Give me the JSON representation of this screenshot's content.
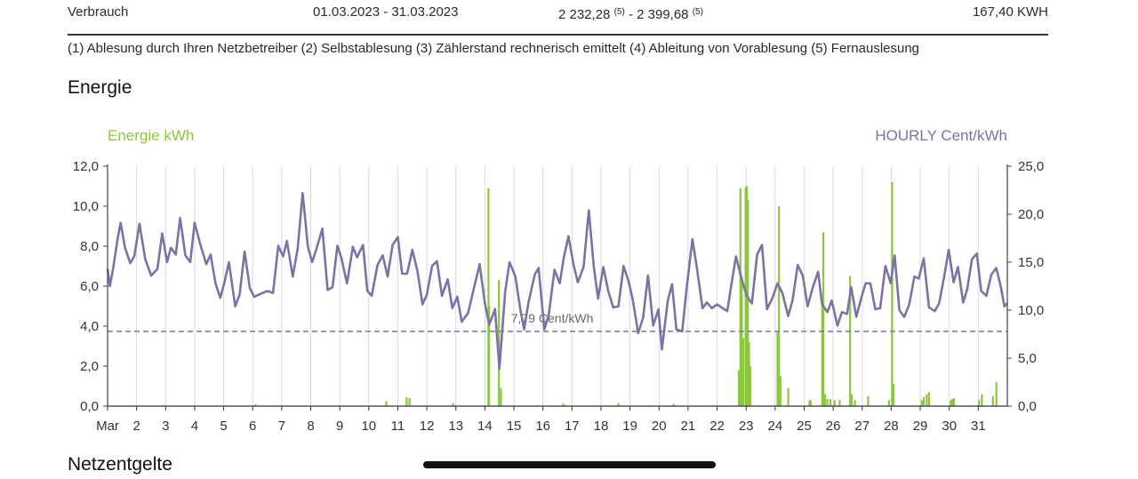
{
  "consumption_row": {
    "label": "Verbrauch",
    "period": "01.03.2023 - 31.03.2023",
    "reading_start": "2 232,28",
    "reading_start_note": "(5)",
    "reading_sep": " - ",
    "reading_end": "2 399,68",
    "reading_end_note": "(5)",
    "total": "167,40 KWH"
  },
  "footnotes": "(1) Ablesung durch Ihren Netzbetreiber (2) Selbstablesung (3) Zählerstand rechnerisch emittelt (4) Ableitung von Vorablesung (5) Fernauslesung",
  "energy_section": {
    "title": "Energie"
  },
  "network_section": {
    "title": "Netzentgelte"
  },
  "colors": {
    "energy": "#8cc63f",
    "price": "#7a74a6",
    "grid": "#d9d8ea",
    "axis": "#333333"
  },
  "chart_data": {
    "type": "bar",
    "left_axis_title": "Energie kWh",
    "right_axis_title": "HOURLY Cent/kWh",
    "left_ticks": [
      "0,0",
      "2,0",
      "4,0",
      "6,0",
      "8,0",
      "10,0",
      "12,0"
    ],
    "right_ticks": [
      "0,0",
      "5,0",
      "10,0",
      "15,0",
      "20,0",
      "25,0"
    ],
    "ylim_left": [
      0,
      12
    ],
    "ylim_right": [
      0,
      25
    ],
    "x_day_range": [
      1,
      32
    ],
    "x_labels": [
      "Mar",
      "2",
      "3",
      "4",
      "5",
      "6",
      "7",
      "8",
      "9",
      "10",
      "11",
      "12",
      "13",
      "14",
      "15",
      "16",
      "17",
      "18",
      "19",
      "20",
      "21",
      "22",
      "23",
      "24",
      "25",
      "26",
      "27",
      "28",
      "29",
      "30",
      "31"
    ],
    "grid": "vertical daily lines",
    "average_label": "7,79 Cent/kWh",
    "average_value": 7.79,
    "energy_series": {
      "name": "Energie kWh",
      "points": [
        [
          14.12,
          10.9
        ],
        [
          14.14,
          5.0
        ],
        [
          14.48,
          6.3
        ],
        [
          14.55,
          0.9
        ],
        [
          22.75,
          1.8
        ],
        [
          22.8,
          10.9
        ],
        [
          22.85,
          6.5
        ],
        [
          22.9,
          3.4
        ],
        [
          22.98,
          10.95
        ],
        [
          23.02,
          11.0
        ],
        [
          23.06,
          10.3
        ],
        [
          23.1,
          3.2
        ],
        [
          23.14,
          2.0
        ],
        [
          24.08,
          3.7
        ],
        [
          24.13,
          10.0
        ],
        [
          24.18,
          1.5
        ],
        [
          24.45,
          0.9
        ],
        [
          25.18,
          0.3
        ],
        [
          25.22,
          0.3
        ],
        [
          25.62,
          5.1
        ],
        [
          25.66,
          8.7
        ],
        [
          25.72,
          0.6
        ],
        [
          25.8,
          0.35
        ],
        [
          25.9,
          0.35
        ],
        [
          26.05,
          0.3
        ],
        [
          26.22,
          0.3
        ],
        [
          26.58,
          6.5
        ],
        [
          26.64,
          0.6
        ],
        [
          26.75,
          0.3
        ],
        [
          27.2,
          0.5
        ],
        [
          27.92,
          0.3
        ],
        [
          28.03,
          11.2
        ],
        [
          28.08,
          1.1
        ],
        [
          29.05,
          0.3
        ],
        [
          29.12,
          0.45
        ],
        [
          29.22,
          0.6
        ],
        [
          29.3,
          0.7
        ],
        [
          30.05,
          0.3
        ],
        [
          30.1,
          0.35
        ],
        [
          30.16,
          0.4
        ],
        [
          31.02,
          0.3
        ],
        [
          31.12,
          0.6
        ],
        [
          31.5,
          0.5
        ],
        [
          31.62,
          1.2
        ],
        [
          11.3,
          0.45
        ],
        [
          11.4,
          0.4
        ],
        [
          10.6,
          0.25
        ],
        [
          6.1,
          0.1
        ],
        [
          12.9,
          0.15
        ],
        [
          16.7,
          0.15
        ],
        [
          18.6,
          0.15
        ],
        [
          20.5,
          0.1
        ]
      ]
    },
    "price_series": {
      "name": "HOURLY Cent/kWh",
      "points": [
        [
          1.0,
          14.3
        ],
        [
          1.08,
          12.5
        ],
        [
          1.2,
          14.5
        ],
        [
          1.35,
          17.5
        ],
        [
          1.45,
          19.1
        ],
        [
          1.6,
          16.5
        ],
        [
          1.78,
          14.9
        ],
        [
          1.92,
          15.6
        ],
        [
          2.1,
          19.0
        ],
        [
          2.3,
          15.3
        ],
        [
          2.5,
          13.6
        ],
        [
          2.72,
          14.3
        ],
        [
          2.88,
          18.0
        ],
        [
          3.05,
          15.0
        ],
        [
          3.18,
          16.5
        ],
        [
          3.35,
          15.8
        ],
        [
          3.5,
          19.6
        ],
        [
          3.68,
          15.7
        ],
        [
          3.85,
          15.0
        ],
        [
          4.0,
          19.1
        ],
        [
          4.2,
          16.8
        ],
        [
          4.4,
          14.8
        ],
        [
          4.55,
          15.8
        ],
        [
          4.72,
          12.8
        ],
        [
          4.88,
          11.3
        ],
        [
          5.02,
          12.8
        ],
        [
          5.18,
          15.0
        ],
        [
          5.4,
          10.4
        ],
        [
          5.55,
          11.6
        ],
        [
          5.72,
          16.1
        ],
        [
          5.9,
          12.3
        ],
        [
          6.05,
          11.4
        ],
        [
          6.2,
          11.6
        ],
        [
          6.5,
          12.0
        ],
        [
          6.7,
          11.8
        ],
        [
          6.88,
          16.7
        ],
        [
          7.05,
          15.6
        ],
        [
          7.18,
          17.2
        ],
        [
          7.38,
          13.5
        ],
        [
          7.55,
          16.4
        ],
        [
          7.72,
          22.2
        ],
        [
          7.9,
          16.6
        ],
        [
          8.05,
          15.0
        ],
        [
          8.2,
          16.4
        ],
        [
          8.4,
          18.5
        ],
        [
          8.58,
          12.1
        ],
        [
          8.75,
          12.4
        ],
        [
          8.92,
          16.7
        ],
        [
          9.05,
          15.5
        ],
        [
          9.25,
          12.8
        ],
        [
          9.45,
          16.6
        ],
        [
          9.6,
          15.5
        ],
        [
          9.8,
          16.8
        ],
        [
          9.95,
          12.0
        ],
        [
          10.1,
          11.5
        ],
        [
          10.3,
          14.7
        ],
        [
          10.48,
          15.7
        ],
        [
          10.65,
          13.5
        ],
        [
          10.82,
          16.8
        ],
        [
          11.0,
          17.6
        ],
        [
          11.15,
          13.8
        ],
        [
          11.32,
          13.8
        ],
        [
          11.5,
          16.3
        ],
        [
          11.68,
          14.0
        ],
        [
          11.85,
          10.6
        ],
        [
          12.0,
          11.6
        ],
        [
          12.18,
          14.6
        ],
        [
          12.35,
          15.1
        ],
        [
          12.52,
          11.5
        ],
        [
          12.72,
          13.2
        ],
        [
          12.88,
          10.2
        ],
        [
          13.05,
          11.4
        ],
        [
          13.2,
          8.8
        ],
        [
          13.42,
          9.7
        ],
        [
          13.6,
          12.0
        ],
        [
          13.82,
          14.8
        ],
        [
          14.0,
          10.7
        ],
        [
          14.15,
          8.5
        ],
        [
          14.35,
          10.1
        ],
        [
          14.5,
          3.9
        ],
        [
          14.7,
          11.9
        ],
        [
          14.85,
          15.0
        ],
        [
          15.05,
          13.5
        ],
        [
          15.22,
          10.1
        ],
        [
          15.35,
          8.0
        ],
        [
          15.5,
          10.8
        ],
        [
          15.72,
          13.7
        ],
        [
          15.85,
          14.4
        ],
        [
          16.05,
          8.0
        ],
        [
          16.2,
          9.5
        ],
        [
          16.4,
          14.2
        ],
        [
          16.58,
          12.8
        ],
        [
          16.72,
          15.5
        ],
        [
          16.88,
          17.7
        ],
        [
          17.05,
          14.8
        ],
        [
          17.2,
          12.9
        ],
        [
          17.4,
          14.5
        ],
        [
          17.58,
          20.4
        ],
        [
          17.75,
          14.6
        ],
        [
          17.9,
          11.2
        ],
        [
          18.08,
          14.5
        ],
        [
          18.25,
          12.0
        ],
        [
          18.42,
          10.3
        ],
        [
          18.6,
          10.4
        ],
        [
          18.78,
          14.6
        ],
        [
          18.95,
          13.0
        ],
        [
          19.1,
          11.0
        ],
        [
          19.28,
          7.6
        ],
        [
          19.45,
          9.2
        ],
        [
          19.62,
          13.6
        ],
        [
          19.8,
          8.4
        ],
        [
          19.98,
          10.1
        ],
        [
          20.1,
          5.9
        ],
        [
          20.3,
          11.0
        ],
        [
          20.45,
          12.7
        ],
        [
          20.6,
          8.0
        ],
        [
          20.8,
          7.8
        ],
        [
          20.95,
          12.3
        ],
        [
          21.15,
          17.4
        ],
        [
          21.3,
          14.5
        ],
        [
          21.5,
          10.2
        ],
        [
          21.65,
          10.8
        ],
        [
          21.82,
          10.2
        ],
        [
          22.0,
          10.6
        ],
        [
          22.15,
          10.3
        ],
        [
          22.35,
          9.9
        ],
        [
          22.5,
          12.8
        ],
        [
          22.65,
          15.6
        ],
        [
          22.85,
          13.2
        ],
        [
          23.02,
          11.5
        ],
        [
          23.2,
          10.7
        ],
        [
          23.38,
          15.8
        ],
        [
          23.55,
          16.8
        ],
        [
          23.72,
          10.1
        ],
        [
          23.9,
          11.2
        ],
        [
          24.08,
          12.8
        ],
        [
          24.25,
          11.8
        ],
        [
          24.45,
          9.4
        ],
        [
          24.6,
          11.0
        ],
        [
          24.78,
          14.7
        ],
        [
          24.95,
          13.6
        ],
        [
          25.12,
          10.4
        ],
        [
          25.3,
          12.4
        ],
        [
          25.48,
          14.0
        ],
        [
          25.62,
          10.6
        ],
        [
          25.8,
          9.8
        ],
        [
          25.95,
          11.0
        ],
        [
          26.15,
          8.4
        ],
        [
          26.3,
          9.8
        ],
        [
          26.48,
          9.6
        ],
        [
          26.62,
          12.4
        ],
        [
          26.8,
          9.3
        ],
        [
          26.98,
          11.4
        ],
        [
          27.12,
          12.8
        ],
        [
          27.28,
          12.8
        ],
        [
          27.45,
          10.1
        ],
        [
          27.62,
          10.2
        ],
        [
          27.8,
          14.6
        ],
        [
          27.98,
          12.8
        ],
        [
          28.12,
          15.7
        ],
        [
          28.28,
          10.0
        ],
        [
          28.45,
          9.3
        ],
        [
          28.62,
          10.6
        ],
        [
          28.8,
          13.5
        ],
        [
          28.95,
          13.3
        ],
        [
          29.12,
          15.4
        ],
        [
          29.3,
          10.3
        ],
        [
          29.5,
          9.9
        ],
        [
          29.65,
          10.7
        ],
        [
          29.82,
          13.4
        ],
        [
          29.98,
          16.3
        ],
        [
          30.15,
          12.9
        ],
        [
          30.3,
          14.5
        ],
        [
          30.48,
          10.8
        ],
        [
          30.62,
          12.2
        ],
        [
          30.78,
          15.3
        ],
        [
          30.95,
          15.9
        ],
        [
          31.1,
          12.0
        ],
        [
          31.28,
          11.5
        ],
        [
          31.45,
          13.7
        ],
        [
          31.62,
          14.4
        ],
        [
          31.78,
          12.4
        ],
        [
          31.9,
          10.4
        ],
        [
          32.0,
          10.7
        ]
      ]
    }
  }
}
